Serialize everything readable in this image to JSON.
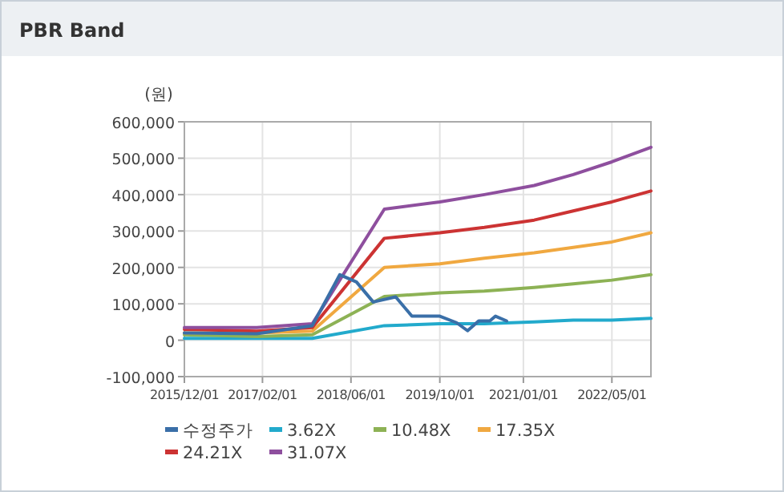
{
  "chart_data": {
    "type": "line",
    "title": "PBR Band",
    "ylabel": "(원)",
    "x": [
      "2015-12-01",
      "2017-01-01",
      "2017-11-01",
      "2018-12-01",
      "2019-10-01",
      "2020-06-01",
      "2021-03-01",
      "2021-10-01",
      "2022-05-01",
      "2022-12-01"
    ],
    "series": [
      {
        "name": "수정주가",
        "color": "#3a6fa8",
        "x": [
          "2015-12-01",
          "2017-01-01",
          "2017-11-01",
          "2018-04-01",
          "2018-07-01",
          "2018-10-01",
          "2019-02-01",
          "2019-05-01",
          "2019-10-01",
          "2020-01-01",
          "2020-03-01",
          "2020-05-01",
          "2020-07-01",
          "2020-08-01",
          "2020-10-01"
        ],
        "values": [
          20000,
          18000,
          40000,
          180000,
          160000,
          105000,
          119000,
          66000,
          66000,
          48000,
          26000,
          53000,
          53000,
          66000,
          53000
        ]
      },
      {
        "name": "3.62X",
        "color": "#22aacc",
        "values": [
          5000,
          5000,
          5000,
          40000,
          45000,
          45000,
          50000,
          55000,
          55000,
          60000
        ]
      },
      {
        "name": "10.48X",
        "color": "#8db255",
        "values": [
          15000,
          10000,
          15000,
          120000,
          130000,
          135000,
          145000,
          155000,
          165000,
          180000
        ]
      },
      {
        "name": "17.35X",
        "color": "#f0a840",
        "values": [
          20000,
          20000,
          25000,
          200000,
          210000,
          225000,
          240000,
          255000,
          270000,
          295000
        ]
      },
      {
        "name": "24.21X",
        "color": "#cc3333",
        "values": [
          30000,
          25000,
          35000,
          280000,
          295000,
          310000,
          330000,
          355000,
          380000,
          410000
        ]
      },
      {
        "name": "31.07X",
        "color": "#8e4f9e",
        "values": [
          35000,
          35000,
          45000,
          360000,
          380000,
          400000,
          425000,
          455000,
          490000,
          530000
        ]
      }
    ],
    "xlim": [
      "2015-12-01",
      "2022-12-01"
    ],
    "xticks": [
      {
        "value": "2015-12-01",
        "label": "2015/12/01"
      },
      {
        "value": "2017-02-01",
        "label": "2017/02/01"
      },
      {
        "value": "2018-06-01",
        "label": "2018/06/01"
      },
      {
        "value": "2019-10-01",
        "label": "2019/10/01"
      },
      {
        "value": "2021-01-01",
        "label": "2021/01/01"
      },
      {
        "value": "2022-05-01",
        "label": "2022/05/01"
      }
    ],
    "ylim": [
      -100000,
      600000
    ],
    "yticks": [
      {
        "value": -100000,
        "label": "-100,000"
      },
      {
        "value": 0,
        "label": "0"
      },
      {
        "value": 100000,
        "label": "100,000"
      },
      {
        "value": 200000,
        "label": "200,000"
      },
      {
        "value": 300000,
        "label": "300,000"
      },
      {
        "value": 400000,
        "label": "400,000"
      },
      {
        "value": 500000,
        "label": "500,000"
      },
      {
        "value": 600000,
        "label": "600,000"
      }
    ],
    "grid": true,
    "legend": "bottom",
    "marker": "none",
    "line_style": "solid"
  }
}
